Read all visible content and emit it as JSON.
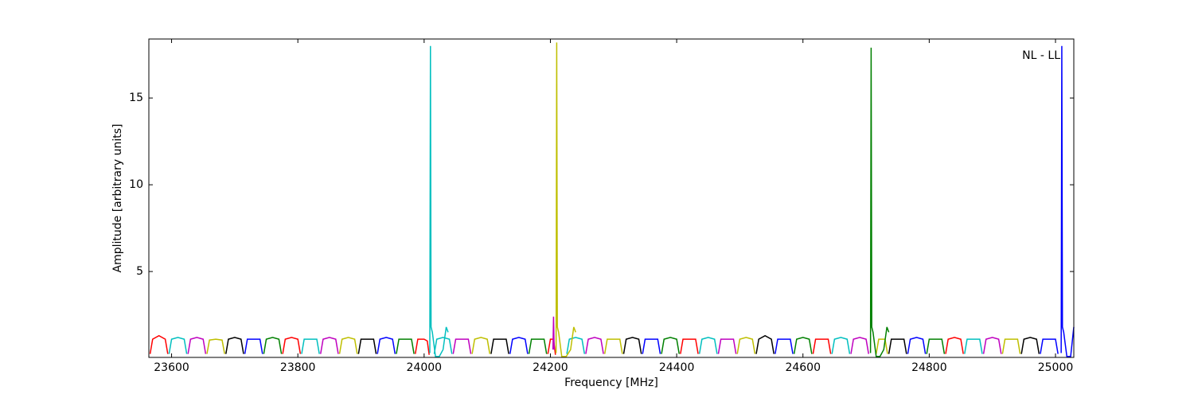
{
  "chart_data": {
    "type": "line",
    "xlabel": "Frequency [MHz]",
    "ylabel": "Amplitude [arbitrary units]",
    "annotation": "NL - LL",
    "xlim": [
      23564,
      25029
    ],
    "ylim": [
      0.05,
      18.4
    ],
    "xticks": [
      23600,
      23800,
      24000,
      24200,
      24400,
      24600,
      24800,
      25000
    ],
    "yticks": [
      5,
      10,
      15
    ],
    "series": [
      {
        "color": "#ff0000",
        "x": [
          23566,
          23570,
          23580,
          23590,
          23594
        ],
        "values": [
          0.25,
          1.1,
          1.3,
          1.1,
          0.25
        ]
      },
      {
        "color": "#00bfbf",
        "x": [
          23596,
          23600,
          23610,
          23620,
          23624
        ],
        "values": [
          0.25,
          1.1,
          1.2,
          1.1,
          0.25
        ]
      },
      {
        "color": "#bf00bf",
        "x": [
          23626,
          23630,
          23640,
          23650,
          23654
        ],
        "values": [
          0.25,
          1.1,
          1.2,
          1.1,
          0.25
        ]
      },
      {
        "color": "#bfbf00",
        "x": [
          23656,
          23660,
          23670,
          23680,
          23684
        ],
        "values": [
          0.25,
          1.05,
          1.1,
          1.05,
          0.25
        ]
      },
      {
        "color": "#000000",
        "x": [
          23686,
          23690,
          23700,
          23710,
          23714
        ],
        "values": [
          0.25,
          1.1,
          1.2,
          1.1,
          0.25
        ]
      },
      {
        "color": "#0000ff",
        "x": [
          23716,
          23720,
          23730,
          23740,
          23744
        ],
        "values": [
          0.25,
          1.1,
          1.1,
          1.1,
          0.25
        ]
      },
      {
        "color": "#008000",
        "x": [
          23746,
          23750,
          23760,
          23770,
          23774
        ],
        "values": [
          0.25,
          1.1,
          1.2,
          1.1,
          0.25
        ]
      },
      {
        "color": "#ff0000",
        "x": [
          23776,
          23780,
          23790,
          23800,
          23804
        ],
        "values": [
          0.25,
          1.1,
          1.2,
          1.1,
          0.25
        ]
      },
      {
        "color": "#00bfbf",
        "x": [
          23806,
          23810,
          23820,
          23830,
          23834
        ],
        "values": [
          0.25,
          1.1,
          1.1,
          1.1,
          0.25
        ]
      },
      {
        "color": "#bf00bf",
        "x": [
          23836,
          23840,
          23850,
          23860,
          23864
        ],
        "values": [
          0.25,
          1.1,
          1.2,
          1.1,
          0.25
        ]
      },
      {
        "color": "#bfbf00",
        "x": [
          23866,
          23870,
          23880,
          23890,
          23894
        ],
        "values": [
          0.25,
          1.1,
          1.2,
          1.1,
          0.25
        ]
      },
      {
        "color": "#000000",
        "x": [
          23896,
          23900,
          23910,
          23920,
          23924
        ],
        "values": [
          0.25,
          1.1,
          1.1,
          1.1,
          0.25
        ]
      },
      {
        "color": "#0000ff",
        "x": [
          23926,
          23930,
          23940,
          23950,
          23954
        ],
        "values": [
          0.25,
          1.1,
          1.2,
          1.1,
          0.25
        ]
      },
      {
        "color": "#008000",
        "x": [
          23956,
          23960,
          23970,
          23980,
          23984
        ],
        "values": [
          0.25,
          1.1,
          1.1,
          1.1,
          0.25
        ]
      },
      {
        "color": "#ff0000",
        "x": [
          23986,
          23990,
          24000,
          24005,
          24008
        ],
        "values": [
          0.25,
          1.1,
          1.1,
          1.0,
          0.2
        ]
      },
      {
        "color": "#00bfbf",
        "x": [
          24016,
          24020,
          24030,
          24040,
          24044
        ],
        "values": [
          0.25,
          1.1,
          1.2,
          1.1,
          0.25
        ]
      },
      {
        "color": "#bf00bf",
        "x": [
          24046,
          24050,
          24060,
          24070,
          24074
        ],
        "values": [
          0.25,
          1.1,
          1.1,
          1.1,
          0.25
        ]
      },
      {
        "color": "#bfbf00",
        "x": [
          24076,
          24080,
          24090,
          24100,
          24104
        ],
        "values": [
          0.25,
          1.1,
          1.2,
          1.1,
          0.25
        ]
      },
      {
        "color": "#000000",
        "x": [
          24106,
          24110,
          24120,
          24130,
          24134
        ],
        "values": [
          0.25,
          1.1,
          1.1,
          1.1,
          0.25
        ]
      },
      {
        "color": "#0000ff",
        "x": [
          24136,
          24140,
          24150,
          24160,
          24164
        ],
        "values": [
          0.25,
          1.1,
          1.2,
          1.1,
          0.25
        ]
      },
      {
        "color": "#008000",
        "x": [
          24166,
          24170,
          24180,
          24190,
          24194
        ],
        "values": [
          0.25,
          1.1,
          1.1,
          1.1,
          0.25
        ]
      },
      {
        "color": "#ff0000",
        "x": [
          24196,
          24200,
          24205,
          24208
        ],
        "values": [
          0.25,
          1.1,
          1.1,
          0.2
        ]
      },
      {
        "color": "#00bfbf",
        "x": [
          24226,
          24230,
          24240,
          24250,
          24254
        ],
        "values": [
          0.25,
          1.1,
          1.2,
          1.1,
          0.25
        ]
      },
      {
        "color": "#bf00bf",
        "x": [
          24256,
          24260,
          24270,
          24280,
          24284
        ],
        "values": [
          0.25,
          1.1,
          1.2,
          1.1,
          0.25
        ]
      },
      {
        "color": "#bfbf00",
        "x": [
          24286,
          24290,
          24300,
          24310,
          24314
        ],
        "values": [
          0.25,
          1.1,
          1.1,
          1.1,
          0.25
        ]
      },
      {
        "color": "#000000",
        "x": [
          24316,
          24320,
          24330,
          24340,
          24344
        ],
        "values": [
          0.25,
          1.1,
          1.2,
          1.1,
          0.25
        ]
      },
      {
        "color": "#0000ff",
        "x": [
          24346,
          24350,
          24360,
          24370,
          24374
        ],
        "values": [
          0.25,
          1.1,
          1.1,
          1.1,
          0.25
        ]
      },
      {
        "color": "#008000",
        "x": [
          24376,
          24380,
          24390,
          24400,
          24404
        ],
        "values": [
          0.25,
          1.1,
          1.2,
          1.1,
          0.25
        ]
      },
      {
        "color": "#ff0000",
        "x": [
          24406,
          24410,
          24420,
          24430,
          24434
        ],
        "values": [
          0.25,
          1.1,
          1.1,
          1.1,
          0.25
        ]
      },
      {
        "color": "#00bfbf",
        "x": [
          24436,
          24440,
          24450,
          24460,
          24464
        ],
        "values": [
          0.25,
          1.1,
          1.2,
          1.1,
          0.25
        ]
      },
      {
        "color": "#bf00bf",
        "x": [
          24466,
          24470,
          24480,
          24490,
          24494
        ],
        "values": [
          0.25,
          1.1,
          1.1,
          1.1,
          0.25
        ]
      },
      {
        "color": "#bfbf00",
        "x": [
          24496,
          24500,
          24510,
          24520,
          24524
        ],
        "values": [
          0.25,
          1.1,
          1.2,
          1.1,
          0.25
        ]
      },
      {
        "color": "#000000",
        "x": [
          24526,
          24530,
          24540,
          24550,
          24554
        ],
        "values": [
          0.25,
          1.1,
          1.3,
          1.1,
          0.25
        ]
      },
      {
        "color": "#0000ff",
        "x": [
          24556,
          24560,
          24570,
          24580,
          24584
        ],
        "values": [
          0.25,
          1.1,
          1.1,
          1.1,
          0.25
        ]
      },
      {
        "color": "#008000",
        "x": [
          24586,
          24590,
          24600,
          24610,
          24614
        ],
        "values": [
          0.25,
          1.1,
          1.2,
          1.1,
          0.25
        ]
      },
      {
        "color": "#ff0000",
        "x": [
          24616,
          24620,
          24630,
          24640,
          24644
        ],
        "values": [
          0.25,
          1.1,
          1.1,
          1.1,
          0.25
        ]
      },
      {
        "color": "#00bfbf",
        "x": [
          24646,
          24650,
          24660,
          24670,
          24674
        ],
        "values": [
          0.25,
          1.1,
          1.2,
          1.1,
          0.25
        ]
      },
      {
        "color": "#bf00bf",
        "x": [
          24676,
          24680,
          24690,
          24700,
          24704
        ],
        "values": [
          0.25,
          1.1,
          1.2,
          1.1,
          0.25
        ]
      },
      {
        "color": "#bfbf00",
        "x": [
          24716,
          24720,
          24730,
          24734
        ],
        "values": [
          0.25,
          1.1,
          1.1,
          0.25
        ]
      },
      {
        "color": "#000000",
        "x": [
          24736,
          24740,
          24750,
          24760,
          24764
        ],
        "values": [
          0.25,
          1.1,
          1.1,
          1.1,
          0.25
        ]
      },
      {
        "color": "#0000ff",
        "x": [
          24766,
          24770,
          24780,
          24790,
          24794
        ],
        "values": [
          0.25,
          1.1,
          1.2,
          1.1,
          0.25
        ]
      },
      {
        "color": "#008000",
        "x": [
          24796,
          24800,
          24810,
          24820,
          24824
        ],
        "values": [
          0.25,
          1.1,
          1.1,
          1.1,
          0.25
        ]
      },
      {
        "color": "#ff0000",
        "x": [
          24826,
          24830,
          24840,
          24850,
          24854
        ],
        "values": [
          0.25,
          1.1,
          1.2,
          1.1,
          0.25
        ]
      },
      {
        "color": "#00bfbf",
        "x": [
          24856,
          24860,
          24870,
          24880,
          24884
        ],
        "values": [
          0.25,
          1.1,
          1.1,
          1.1,
          0.25
        ]
      },
      {
        "color": "#bf00bf",
        "x": [
          24886,
          24890,
          24900,
          24910,
          24914
        ],
        "values": [
          0.25,
          1.1,
          1.2,
          1.1,
          0.25
        ]
      },
      {
        "color": "#bfbf00",
        "x": [
          24916,
          24920,
          24930,
          24940,
          24944
        ],
        "values": [
          0.25,
          1.1,
          1.1,
          1.1,
          0.25
        ]
      },
      {
        "color": "#000000",
        "x": [
          24946,
          24950,
          24960,
          24970,
          24974
        ],
        "values": [
          0.25,
          1.1,
          1.2,
          1.1,
          0.25
        ]
      },
      {
        "color": "#0000ff",
        "x": [
          24976,
          24980,
          24990,
          25000,
          25004
        ],
        "values": [
          0.25,
          1.1,
          1.1,
          1.1,
          0.25
        ]
      },
      {
        "color": "#00bfbf",
        "x": [
          24009,
          24010,
          24011,
          24013,
          24018,
          24024,
          24030,
          24035,
          24038
        ],
        "values": [
          0.3,
          18,
          1.8,
          1.5,
          0.1,
          0.1,
          0.5,
          1.8,
          1.5
        ]
      },
      {
        "color": "#bfbf00",
        "x": [
          24209,
          24210,
          24211,
          24213,
          24218,
          24225,
          24232,
          24237,
          24240
        ],
        "values": [
          0.3,
          18.2,
          1.8,
          1.5,
          0.1,
          0.1,
          0.5,
          1.8,
          1.5
        ]
      },
      {
        "color": "#bf00bf",
        "x": [
          24204,
          24205,
          24206
        ],
        "values": [
          0.5,
          2.4,
          0.5
        ]
      },
      {
        "color": "#008000",
        "x": [
          24707,
          24708,
          24709,
          24711,
          24716,
          24722,
          24728,
          24733,
          24736
        ],
        "values": [
          0.3,
          17.9,
          1.8,
          1.5,
          0.1,
          0.1,
          0.5,
          1.8,
          1.5
        ]
      },
      {
        "color": "#0000ff",
        "x": [
          25009,
          25010,
          25011,
          25013,
          25018,
          25024,
          25029
        ],
        "values": [
          0.3,
          18,
          1.8,
          1.5,
          0.1,
          0.1,
          1.8
        ]
      }
    ]
  }
}
